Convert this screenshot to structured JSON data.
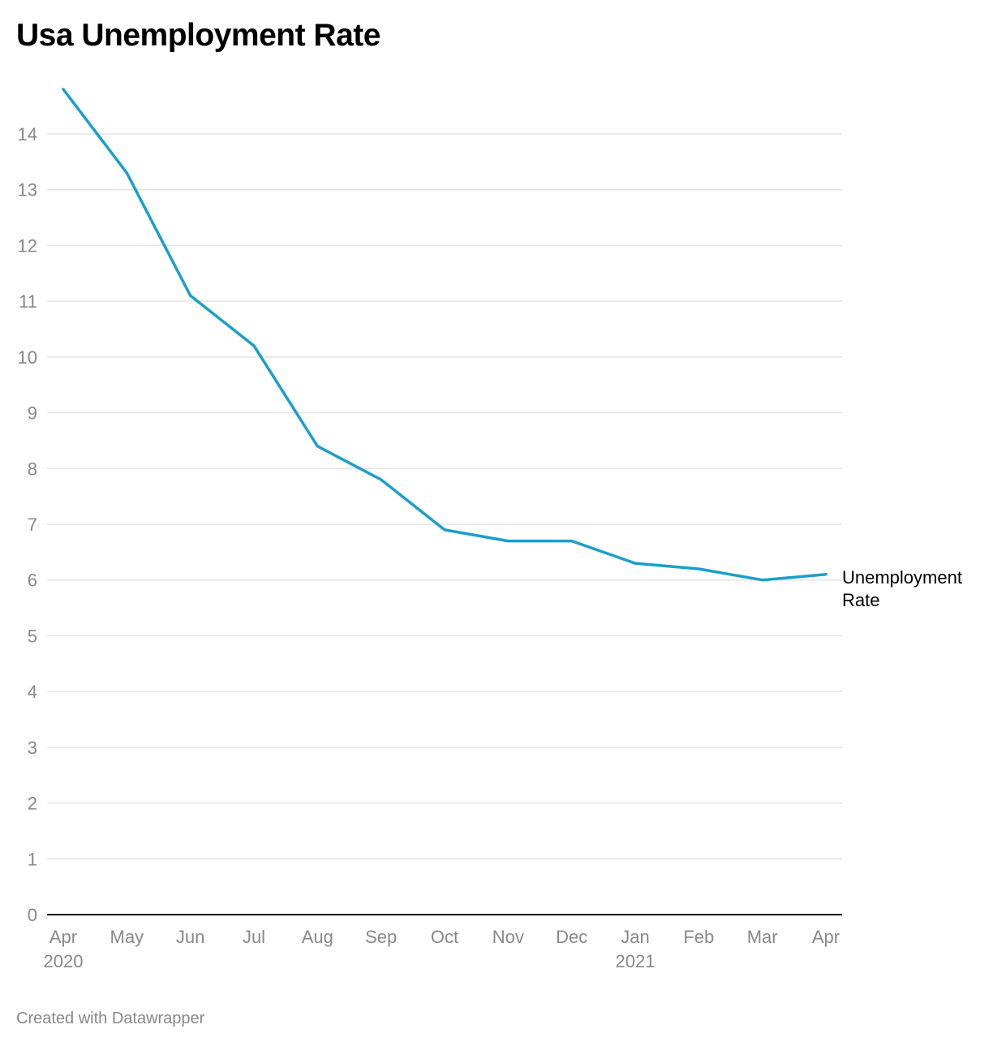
{
  "chart_data": {
    "type": "line",
    "title": "Usa Unemployment Rate",
    "categories": [
      "Apr",
      "May",
      "Jun",
      "Jul",
      "Aug",
      "Sep",
      "Oct",
      "Nov",
      "Dec",
      "Jan",
      "Feb",
      "Mar",
      "Apr"
    ],
    "years": [
      "2020",
      "",
      "",
      "",
      "",
      "",
      "",
      "",
      "",
      "2021",
      "",
      "",
      ""
    ],
    "series": [
      {
        "name": "Unemployment Rate",
        "values": [
          14.8,
          13.3,
          11.1,
          10.2,
          8.4,
          7.8,
          6.9,
          6.7,
          6.7,
          6.3,
          6.2,
          6.0,
          6.1
        ]
      }
    ],
    "ylim": [
      0,
      14.8
    ],
    "yticks": [
      0,
      1,
      2,
      3,
      4,
      5,
      6,
      7,
      8,
      9,
      10,
      11,
      12,
      13,
      14
    ],
    "grid": true,
    "legend": "direct label at line end (right)",
    "xlabel": "",
    "ylabel": ""
  },
  "series_label_lines": [
    "Unemployment",
    "Rate"
  ],
  "footer": "Created with Datawrapper",
  "colors": {
    "line": "#1a9fcb",
    "grid": "#e4e4e4",
    "tick_text": "#888888",
    "axis": "#000000",
    "title": "#000000"
  }
}
